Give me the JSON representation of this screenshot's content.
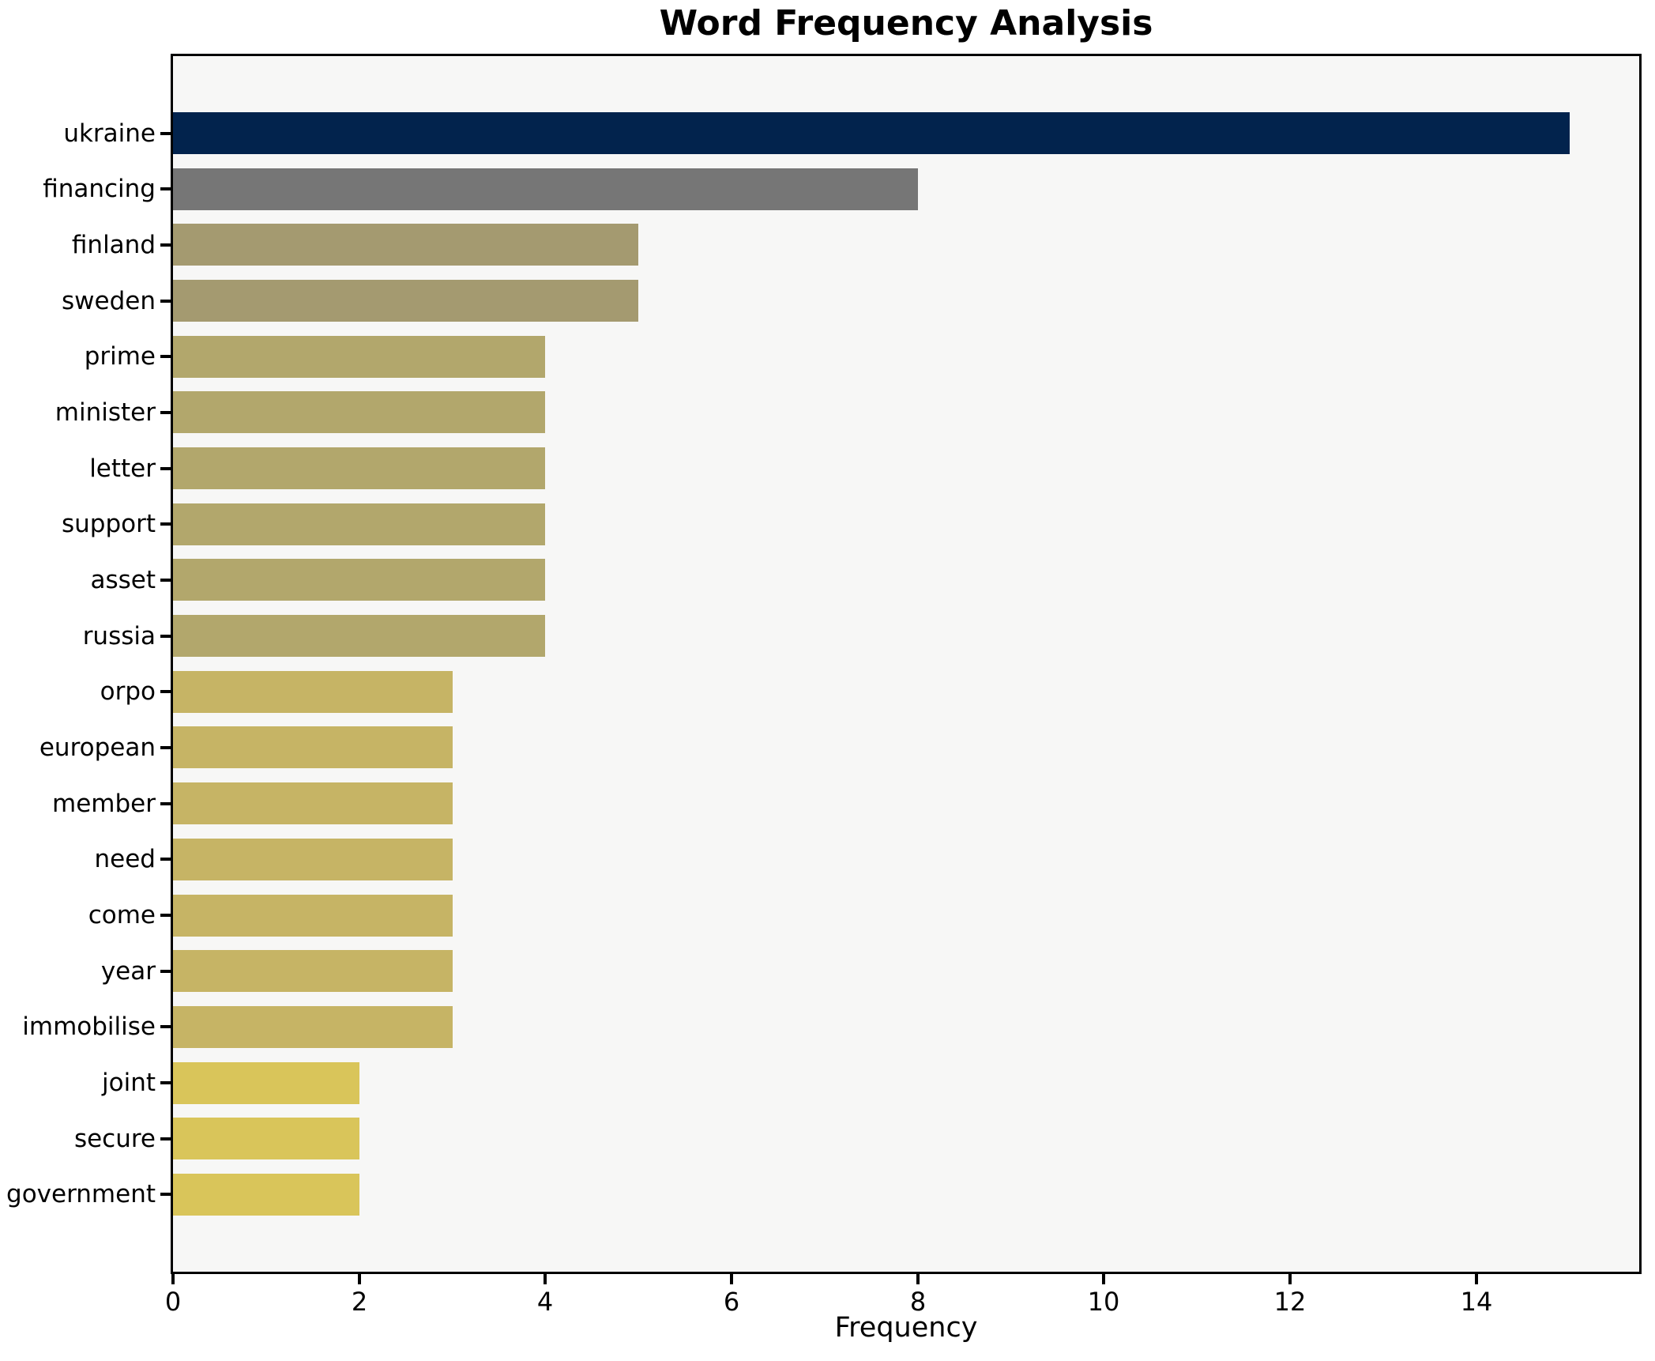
{
  "chart_data": {
    "type": "bar",
    "orientation": "horizontal",
    "title": "Word Frequency Analysis",
    "xlabel": "Frequency",
    "ylabel": "",
    "categories": [
      "ukraine",
      "financing",
      "finland",
      "sweden",
      "prime",
      "minister",
      "letter",
      "support",
      "asset",
      "russia",
      "orpo",
      "european",
      "member",
      "need",
      "come",
      "year",
      "immobilise",
      "joint",
      "secure",
      "government"
    ],
    "values": [
      15,
      8,
      5,
      5,
      4,
      4,
      4,
      4,
      4,
      4,
      3,
      3,
      3,
      3,
      3,
      3,
      3,
      2,
      2,
      2
    ],
    "bar_colors": [
      "#02234d",
      "#767676",
      "#a49a70",
      "#a49a70",
      "#b2a76c",
      "#b2a76c",
      "#b2a76c",
      "#b2a76c",
      "#b2a76c",
      "#b2a76c",
      "#c6b465",
      "#c6b465",
      "#c6b465",
      "#c6b465",
      "#c6b465",
      "#c6b465",
      "#c6b465",
      "#d9c55a",
      "#d9c55a",
      "#d9c55a"
    ],
    "x_ticks": [
      0,
      2,
      4,
      6,
      8,
      10,
      12,
      14
    ],
    "xlim": [
      0,
      15.75
    ],
    "grid": false,
    "legend": "none",
    "plot_background": "#f7f7f6",
    "page_background": "#ffffff",
    "spine_color": "#000000",
    "text_color": "#000000"
  }
}
